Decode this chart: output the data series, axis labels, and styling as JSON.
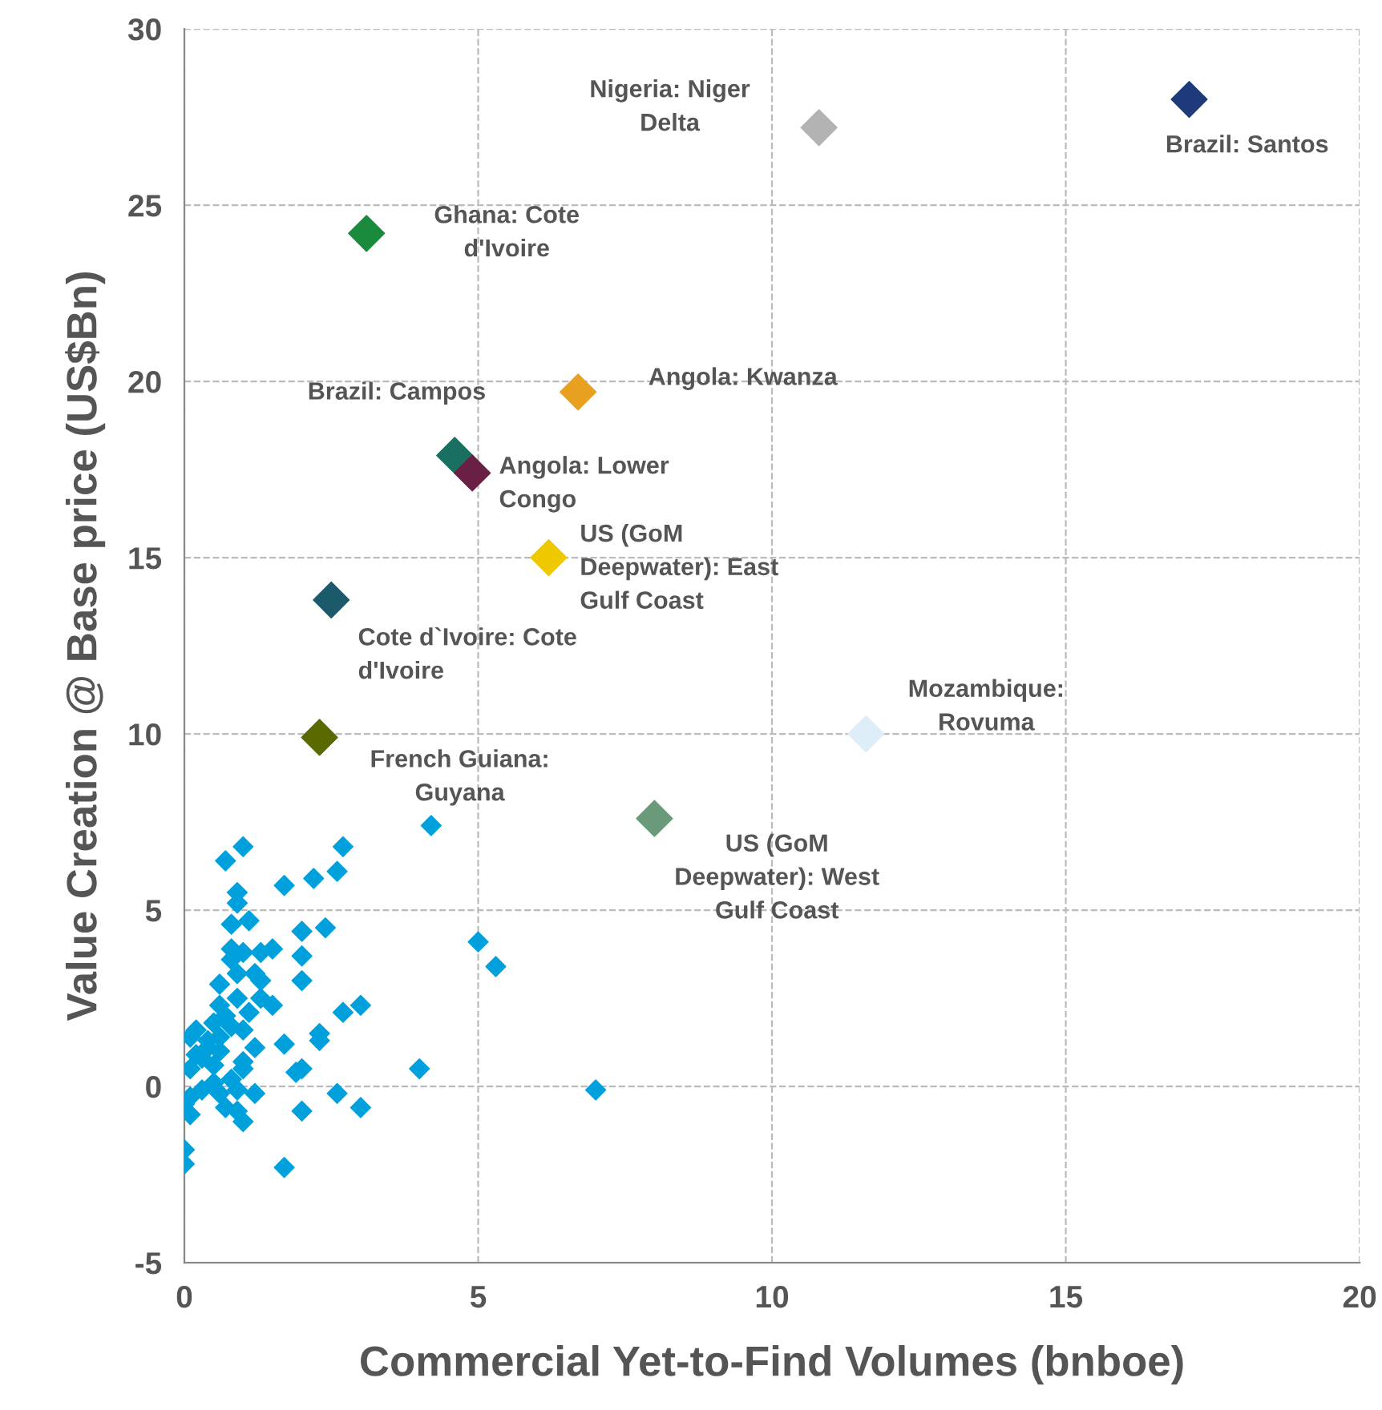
{
  "chart_data": {
    "type": "scatter",
    "xlabel": "Commercial Yet-to-Find Volumes (bnboe)",
    "ylabel": "Value Creation @ Base price (US$Bn)",
    "xlim": [
      0,
      20
    ],
    "xticks": [
      0,
      5,
      10,
      15,
      20
    ],
    "ylim": [
      -5,
      30
    ],
    "yticks": [
      -5,
      0,
      5,
      10,
      15,
      20,
      25,
      30
    ],
    "grid": true,
    "marker": "diamond",
    "series": [
      {
        "color": "#00a0dc",
        "x": [
          4.2,
          1.0,
          0.7,
          2.7,
          2.6,
          2.2,
          1.7,
          0.9,
          0.9,
          0.8,
          1.1,
          2.0,
          2.4,
          5.0,
          0.8,
          1.0,
          1.3,
          1.5,
          0.8,
          2.0,
          0.9,
          1.2,
          1.3,
          2.0,
          0.6,
          0.9,
          1.3,
          1.5,
          0.6,
          3.0,
          2.7,
          0.7,
          1.1,
          0.8,
          1.0,
          0.2,
          0.5,
          2.3,
          2.3,
          1.7,
          1.2,
          0.1,
          0.4,
          0.6,
          0.2,
          2.0,
          1.9,
          4.0,
          1.0,
          1.0,
          0.8,
          0.1,
          0.5,
          0.9,
          0.6,
          1.2,
          0.1,
          2.6,
          3.0,
          0.0,
          0.1,
          0.7,
          0.9,
          1.0,
          2.0,
          0.0,
          0.0,
          1.7,
          5.3,
          7.0,
          0.3,
          0.4,
          0.5,
          0.3,
          0.6
        ],
        "values": [
          7.4,
          6.8,
          6.4,
          6.8,
          6.1,
          5.9,
          5.7,
          5.5,
          5.2,
          4.6,
          4.7,
          4.4,
          4.5,
          4.1,
          3.9,
          3.8,
          3.8,
          3.9,
          3.6,
          3.7,
          3.2,
          3.2,
          3.0,
          3.0,
          2.9,
          2.5,
          2.5,
          2.3,
          2.3,
          2.3,
          2.1,
          2.0,
          2.1,
          1.7,
          1.6,
          1.6,
          1.8,
          1.5,
          1.3,
          1.2,
          1.1,
          1.4,
          1.3,
          1.0,
          0.9,
          0.5,
          0.4,
          0.5,
          0.7,
          0.5,
          0.2,
          0.5,
          0.1,
          -0.1,
          -0.2,
          -0.2,
          -0.3,
          -0.2,
          -0.6,
          -0.5,
          -0.8,
          -0.6,
          -0.7,
          -1.0,
          -0.7,
          -1.8,
          -2.2,
          -2.3,
          3.4,
          -0.1,
          0.8,
          1.1,
          0.6,
          -0.1,
          1.4
        ]
      },
      {
        "name": "Brazil: Santos",
        "color": "#1f3a7a",
        "x": [
          17.1
        ],
        "values": [
          28.0
        ]
      },
      {
        "name": "Nigeria: Niger\nDelta",
        "color": "#b3b3b3",
        "x": [
          10.8
        ],
        "values": [
          27.2
        ]
      },
      {
        "name": "Ghana: Cote\nd'Ivoire",
        "color": "#1a8a3c",
        "x": [
          3.1
        ],
        "values": [
          24.2
        ]
      },
      {
        "name": "Angola: Kwanza",
        "color": "#e8a020",
        "x": [
          6.7
        ],
        "values": [
          19.7
        ]
      },
      {
        "name": "Brazil: Campos",
        "color": "#1a7060",
        "x": [
          4.6
        ],
        "values": [
          17.9
        ]
      },
      {
        "name": "Angola: Lower\nCongo",
        "color": "#6a1f45",
        "x": [
          4.9
        ],
        "values": [
          17.4
        ]
      },
      {
        "name": "US (GoM\nDeepwater): East\nGulf Coast",
        "color": "#f0c800",
        "x": [
          6.2
        ],
        "values": [
          15.0
        ]
      },
      {
        "name": "Cote d`Ivoire: Cote\nd'Ivoire",
        "color": "#1a5a6a",
        "x": [
          2.5
        ],
        "values": [
          13.8
        ]
      },
      {
        "name": "Mozambique:\nRovuma",
        "color": "#ddeef8",
        "x": [
          11.6
        ],
        "values": [
          10.0
        ]
      },
      {
        "name": "French Guiana:\nGuyana",
        "color": "#5a6a00",
        "x": [
          2.3
        ],
        "values": [
          9.9
        ]
      },
      {
        "name": "US (GoM\nDeepwater): West\nGulf Coast",
        "color": "#6a9a7a",
        "x": [
          8.0
        ],
        "values": [
          7.6
        ]
      }
    ]
  }
}
